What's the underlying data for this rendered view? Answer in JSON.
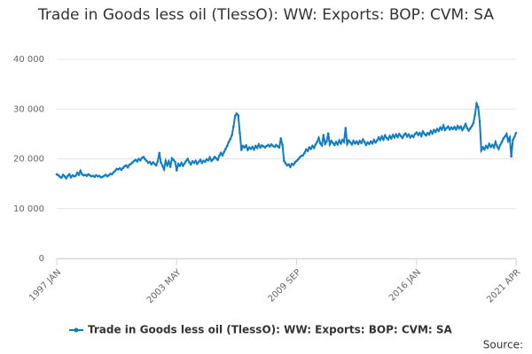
{
  "chart_data": {
    "type": "line",
    "title": "Trade in Goods less oil (TlessO): WW: Exports: BOP: CVM: SA",
    "source": "Source:",
    "categories": [
      "1997 JAN",
      null,
      null,
      null,
      null,
      null,
      null,
      null,
      null,
      null,
      null,
      null,
      null,
      null,
      null,
      null,
      null,
      null,
      null,
      null,
      null,
      null,
      null,
      null,
      null,
      null,
      null,
      null,
      null,
      null,
      null,
      null,
      null,
      null,
      null,
      null,
      null,
      null,
      null,
      null,
      null,
      null,
      null,
      null,
      null,
      null,
      null,
      null,
      null,
      null,
      null,
      null,
      null,
      null,
      null,
      null,
      null,
      null,
      null,
      null,
      null,
      null,
      null,
      null,
      null,
      null,
      null,
      null,
      null,
      null,
      null,
      null,
      null,
      null,
      null,
      null,
      "2003 MAY",
      null,
      null,
      null,
      null,
      null,
      null,
      null,
      null,
      null,
      null,
      null,
      null,
      null,
      null,
      null,
      null,
      null,
      null,
      null,
      null,
      null,
      null,
      null,
      null,
      null,
      null,
      null,
      null,
      null,
      null,
      null,
      null,
      null,
      null,
      null,
      null,
      null,
      null,
      null,
      null,
      null,
      null,
      null,
      null,
      null,
      null,
      null,
      null,
      null,
      null,
      null,
      null,
      null,
      null,
      null,
      null,
      null,
      null,
      null,
      null,
      null,
      null,
      null,
      null,
      null,
      null,
      null,
      null,
      null,
      null,
      null,
      null,
      null,
      null,
      null,
      "2009 SEP",
      null,
      null,
      null,
      null,
      null,
      null,
      null,
      null,
      null,
      null,
      null,
      null,
      null,
      null,
      null,
      null,
      null,
      null,
      null,
      null,
      null,
      null,
      null,
      null,
      null,
      null,
      null,
      null,
      null,
      null,
      null,
      null,
      null,
      null,
      null,
      null,
      null,
      null,
      null,
      null,
      null,
      null,
      null,
      null,
      null,
      null,
      null,
      null,
      null,
      null,
      null,
      null,
      null,
      null,
      null,
      null,
      null,
      null,
      null,
      null,
      null,
      null,
      null,
      null,
      null,
      null,
      null,
      null,
      null,
      null,
      null,
      null,
      null,
      null,
      null,
      "2016 JAN",
      null,
      null,
      null,
      null,
      null,
      null,
      null,
      null,
      null,
      null,
      null,
      null,
      null,
      null,
      null,
      null,
      null,
      null,
      null,
      null,
      null,
      null,
      null,
      null,
      null,
      null,
      null,
      null,
      null,
      null,
      null,
      null,
      null,
      null,
      null,
      null,
      null,
      null,
      null,
      null,
      null,
      null,
      null,
      null,
      null,
      null,
      null,
      null,
      null,
      null,
      null,
      null,
      null,
      null,
      null,
      null,
      null,
      null,
      null,
      null,
      null,
      null,
      "2021 APR"
    ],
    "series": [
      {
        "name": "Trade in Goods less oil (TlessO): WW: Exports: BOP: CVM: SA",
        "color": "#0f7dc2",
        "values": [
          16900,
          16700,
          16400,
          16200,
          16800,
          16500,
          16100,
          16600,
          16900,
          16300,
          16700,
          16500,
          16600,
          17200,
          16800,
          17600,
          16900,
          16700,
          16800,
          16600,
          16900,
          16700,
          16500,
          16600,
          16400,
          16700,
          16500,
          16600,
          16300,
          16400,
          16600,
          16800,
          16500,
          16700,
          17000,
          16900,
          17300,
          17600,
          18000,
          17900,
          18100,
          17800,
          18200,
          18500,
          18700,
          18300,
          18800,
          19000,
          19300,
          19600,
          19800,
          19500,
          20000,
          19700,
          20200,
          20400,
          19900,
          19600,
          19200,
          19400,
          18900,
          19300,
          19000,
          18700,
          19500,
          21200,
          19300,
          18600,
          17900,
          19600,
          18700,
          19500,
          18400,
          20100,
          19800,
          19400,
          17700,
          19000,
          18600,
          19200,
          18600,
          19100,
          19600,
          20000,
          19300,
          18900,
          19500,
          19200,
          19600,
          19000,
          19400,
          19800,
          19200,
          19600,
          19400,
          19900,
          19700,
          20300,
          19600,
          19900,
          20400,
          20100,
          19800,
          20600,
          21200,
          20700,
          21400,
          22000,
          22600,
          23400,
          24000,
          24800,
          26500,
          28600,
          29100,
          28700,
          25200,
          21800,
          22600,
          22300,
          22700,
          21800,
          22300,
          22000,
          22400,
          21900,
          22600,
          22200,
          22900,
          22300,
          22700,
          22500,
          22300,
          22600,
          22800,
          22500,
          22900,
          22600,
          22400,
          22800,
          22500,
          22300,
          24100,
          22800,
          19600,
          19100,
          18700,
          18900,
          18400,
          19000,
          18800,
          19300,
          19600,
          19900,
          20300,
          20600,
          20700,
          21200,
          21900,
          21600,
          22300,
          22000,
          22600,
          22200,
          22900,
          23400,
          24200,
          23100,
          22700,
          24800,
          23000,
          23500,
          25100,
          22900,
          23600,
          23200,
          22800,
          23400,
          22900,
          23700,
          23100,
          23800,
          23400,
          26200,
          23000,
          23700,
          23300,
          22900,
          23600,
          23100,
          23500,
          23000,
          23600,
          23200,
          23900,
          23400,
          22800,
          23300,
          23000,
          23500,
          23100,
          23800,
          23300,
          23700,
          24300,
          23800,
          24500,
          23900,
          24700,
          24200,
          23900,
          24600,
          24100,
          24800,
          24300,
          24900,
          24400,
          25000,
          24600,
          24200,
          24800,
          25100,
          24500,
          24900,
          24300,
          24700,
          24400,
          25000,
          25300,
          24800,
          25200,
          24600,
          25500,
          25000,
          24700,
          25200,
          24900,
          25600,
          25100,
          25800,
          25400,
          26000,
          25600,
          26300,
          25900,
          26700,
          25800,
          26200,
          26500,
          25900,
          26300,
          26000,
          26400,
          25900,
          26600,
          26100,
          26500,
          25800,
          26300,
          27000,
          26200,
          25700,
          26100,
          26600,
          27200,
          28900,
          31100,
          30400,
          27500,
          21700,
          22300,
          21900,
          22600,
          22200,
          23000,
          22400,
          22800,
          22300,
          23400,
          22500,
          22000,
          22800,
          23400,
          24100,
          24500,
          25000,
          23600,
          24300,
          20500,
          23800,
          24400,
          25200
        ]
      }
    ],
    "ylim": [
      0,
      40000
    ],
    "yticks": [
      0,
      {
        "value": 10000,
        "label": "10 000"
      },
      {
        "value": 20000,
        "label": "20 000"
      },
      {
        "value": 30000,
        "label": "30 000"
      },
      {
        "value": 40000,
        "label": "40 000"
      }
    ],
    "grid": true,
    "legend": "bottom"
  }
}
